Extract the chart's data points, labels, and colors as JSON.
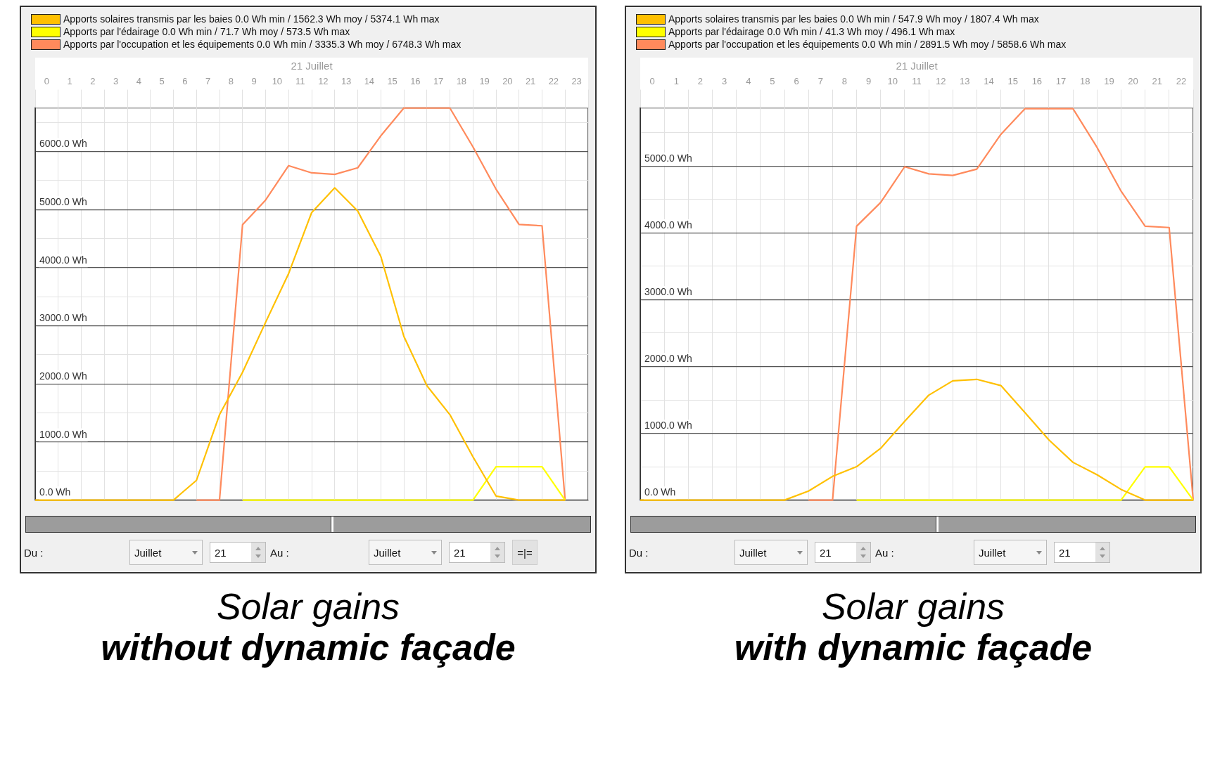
{
  "chart_data": [
    {
      "type": "line",
      "title": "Solar gains",
      "subtitle": "without dynamic façade",
      "xlabel": "21 Juillet",
      "legend": "top left",
      "grid": true,
      "x": [
        0,
        1,
        2,
        3,
        4,
        5,
        6,
        7,
        8,
        9,
        10,
        11,
        12,
        13,
        14,
        15,
        16,
        17,
        18,
        19,
        20,
        21,
        22,
        23
      ],
      "xlim": [
        0,
        24
      ],
      "xticks": [
        {
          "value": 0,
          "label": null
        },
        {
          "value": 0.5,
          "label": "0"
        },
        {
          "value": 1,
          "label": null
        },
        {
          "value": 1.5,
          "label": "1"
        },
        {
          "value": 2,
          "label": null
        },
        {
          "value": 2.5,
          "label": "2"
        },
        {
          "value": 3,
          "label": null
        },
        {
          "value": 3.5,
          "label": "3"
        },
        {
          "value": 4,
          "label": null
        },
        {
          "value": 4.5,
          "label": "4"
        },
        {
          "value": 5,
          "label": null
        },
        {
          "value": 5.5,
          "label": "5"
        },
        {
          "value": 6,
          "label": null
        },
        {
          "value": 6.5,
          "label": "6"
        },
        {
          "value": 7,
          "label": null
        },
        {
          "value": 7.5,
          "label": "7"
        },
        {
          "value": 8,
          "label": null
        },
        {
          "value": 8.5,
          "label": "8"
        },
        {
          "value": 9,
          "label": null
        },
        {
          "value": 9.5,
          "label": "9"
        },
        {
          "value": 10,
          "label": null
        },
        {
          "value": 10.5,
          "label": "10"
        },
        {
          "value": 11,
          "label": null
        },
        {
          "value": 11.5,
          "label": "11"
        },
        {
          "value": 12,
          "label": null
        },
        {
          "value": 12.5,
          "label": "12"
        },
        {
          "value": 13,
          "label": null
        },
        {
          "value": 13.5,
          "label": "13"
        },
        {
          "value": 14,
          "label": null
        },
        {
          "value": 14.5,
          "label": "14"
        },
        {
          "value": 15,
          "label": null
        },
        {
          "value": 15.5,
          "label": "15"
        },
        {
          "value": 16,
          "label": null
        },
        {
          "value": 16.5,
          "label": "16"
        },
        {
          "value": 17,
          "label": null
        },
        {
          "value": 17.5,
          "label": "17"
        },
        {
          "value": 18,
          "label": null
        },
        {
          "value": 18.5,
          "label": "18"
        },
        {
          "value": 19,
          "label": null
        },
        {
          "value": 19.5,
          "label": "19"
        },
        {
          "value": 20,
          "label": null
        },
        {
          "value": 20.5,
          "label": "20"
        },
        {
          "value": 21,
          "label": null
        },
        {
          "value": 21.5,
          "label": "21"
        },
        {
          "value": 22,
          "label": null
        },
        {
          "value": 22.5,
          "label": "22"
        },
        {
          "value": 23,
          "label": null
        },
        {
          "value": 23.5,
          "label": "23"
        },
        {
          "value": 24,
          "label": null
        }
      ],
      "ylim": [
        0,
        6750
      ],
      "yticks": [
        {
          "value": 0,
          "label": "0.0 Wh"
        },
        {
          "value": 500,
          "label": null
        },
        {
          "value": 1000,
          "label": "1000.0 Wh"
        },
        {
          "value": 1500,
          "label": null
        },
        {
          "value": 2000,
          "label": "2000.0 Wh"
        },
        {
          "value": 2500,
          "label": null
        },
        {
          "value": 3000,
          "label": "3000.0 Wh"
        },
        {
          "value": 3500,
          "label": null
        },
        {
          "value": 4000,
          "label": "4000.0 Wh"
        },
        {
          "value": 4500,
          "label": null
        },
        {
          "value": 5000,
          "label": "5000.0 Wh"
        },
        {
          "value": 5500,
          "label": null
        },
        {
          "value": 6000,
          "label": "6000.0 Wh"
        },
        {
          "value": 6500,
          "label": null
        }
      ],
      "series": [
        {
          "name": "Apports solaires transmis par les baies 0.0 Wh min / 1562.3 Wh moy / 5374.1 Wh max",
          "color": "#ffc000",
          "values": [
            0,
            0,
            0,
            0,
            0,
            0,
            0,
            340,
            1470,
            2200,
            3060,
            3900,
            4950,
            5374.1,
            4975,
            4195,
            2820,
            1970,
            1470,
            745,
            70,
            0,
            0,
            0
          ]
        },
        {
          "name": "Apports par l'édairage 0.0 Wh min / 71.7 Wh moy / 573.5 Wh max",
          "color": "#ffff00",
          "values": [
            null,
            null,
            null,
            null,
            null,
            null,
            null,
            null,
            null,
            0,
            0,
            0,
            0,
            0,
            0,
            0,
            0,
            0,
            0,
            0,
            573.5,
            573.5,
            573.5,
            0
          ]
        },
        {
          "name": "Apports par l'occupation et les équipements 0.0 Wh min / 3335.3 Wh moy / 6748.3 Wh max",
          "color": "#ff8a5c",
          "values": [
            null,
            null,
            null,
            null,
            null,
            null,
            null,
            0,
            0,
            4740,
            5165,
            5757,
            5633,
            5606,
            5720,
            6270,
            6748.3,
            6748.3,
            6748.3,
            6080,
            5353,
            4744,
            4722,
            0
          ]
        }
      ],
      "annotations": [
        "Du :",
        "Juillet",
        "21",
        "Au :",
        "Juillet",
        "21",
        "=|="
      ]
    },
    {
      "type": "line",
      "title": "Solar gains",
      "subtitle": "with dynamic façade",
      "xlabel": "21 Juillet",
      "legend": "top left",
      "grid": true,
      "x": [
        0,
        1,
        2,
        3,
        4,
        5,
        6,
        7,
        8,
        9,
        10,
        11,
        12,
        13,
        14,
        15,
        16,
        17,
        18,
        19,
        20,
        21,
        22,
        23
      ],
      "xlim": [
        0,
        23
      ],
      "xticks": [
        {
          "value": 0,
          "label": null
        },
        {
          "value": 0.5,
          "label": "0"
        },
        {
          "value": 1,
          "label": null
        },
        {
          "value": 1.5,
          "label": "1"
        },
        {
          "value": 2,
          "label": null
        },
        {
          "value": 2.5,
          "label": "2"
        },
        {
          "value": 3,
          "label": null
        },
        {
          "value": 3.5,
          "label": "3"
        },
        {
          "value": 4,
          "label": null
        },
        {
          "value": 4.5,
          "label": "4"
        },
        {
          "value": 5,
          "label": null
        },
        {
          "value": 5.5,
          "label": "5"
        },
        {
          "value": 6,
          "label": null
        },
        {
          "value": 6.5,
          "label": "6"
        },
        {
          "value": 7,
          "label": null
        },
        {
          "value": 7.5,
          "label": "7"
        },
        {
          "value": 8,
          "label": null
        },
        {
          "value": 8.5,
          "label": "8"
        },
        {
          "value": 9,
          "label": null
        },
        {
          "value": 9.5,
          "label": "9"
        },
        {
          "value": 10,
          "label": null
        },
        {
          "value": 10.5,
          "label": "10"
        },
        {
          "value": 11,
          "label": null
        },
        {
          "value": 11.5,
          "label": "11"
        },
        {
          "value": 12,
          "label": null
        },
        {
          "value": 12.5,
          "label": "12"
        },
        {
          "value": 13,
          "label": null
        },
        {
          "value": 13.5,
          "label": "13"
        },
        {
          "value": 14,
          "label": null
        },
        {
          "value": 14.5,
          "label": "14"
        },
        {
          "value": 15,
          "label": null
        },
        {
          "value": 15.5,
          "label": "15"
        },
        {
          "value": 16,
          "label": null
        },
        {
          "value": 16.5,
          "label": "16"
        },
        {
          "value": 17,
          "label": null
        },
        {
          "value": 17.5,
          "label": "17"
        },
        {
          "value": 18,
          "label": null
        },
        {
          "value": 18.5,
          "label": "18"
        },
        {
          "value": 19,
          "label": null
        },
        {
          "value": 19.5,
          "label": "19"
        },
        {
          "value": 20,
          "label": null
        },
        {
          "value": 20.5,
          "label": "20"
        },
        {
          "value": 21,
          "label": null
        },
        {
          "value": 21.5,
          "label": "21"
        },
        {
          "value": 22,
          "label": null
        },
        {
          "value": 22.5,
          "label": "22"
        },
        {
          "value": 23,
          "label": null
        }
      ],
      "ylim": [
        0,
        5870
      ],
      "yticks": [
        {
          "value": 0,
          "label": "0.0 Wh"
        },
        {
          "value": 500,
          "label": null
        },
        {
          "value": 1000,
          "label": "1000.0 Wh"
        },
        {
          "value": 1500,
          "label": null
        },
        {
          "value": 2000,
          "label": "2000.0 Wh"
        },
        {
          "value": 2500,
          "label": null
        },
        {
          "value": 3000,
          "label": "3000.0 Wh"
        },
        {
          "value": 3500,
          "label": null
        },
        {
          "value": 4000,
          "label": "4000.0 Wh"
        },
        {
          "value": 4500,
          "label": null
        },
        {
          "value": 5000,
          "label": "5000.0 Wh"
        },
        {
          "value": 5500,
          "label": null
        }
      ],
      "series": [
        {
          "name": "Apports solaires transmis par les baies 0.0 Wh min / 547.9 Wh moy / 1807.4 Wh max",
          "color": "#ffc000",
          "values": [
            0,
            0,
            0,
            0,
            0,
            0,
            0,
            135,
            355,
            500,
            775,
            1180,
            1570,
            1785,
            1807.4,
            1715,
            1310,
            900,
            565,
            380,
            160,
            0,
            0,
            0
          ]
        },
        {
          "name": "Apports par l'édairage 0.0 Wh min / 41.3 Wh moy / 496.1 Wh max",
          "color": "#ffff00",
          "values": [
            null,
            null,
            null,
            null,
            null,
            null,
            null,
            null,
            null,
            0,
            0,
            0,
            0,
            0,
            0,
            0,
            0,
            0,
            0,
            0,
            0,
            496.1,
            496.1,
            0
          ]
        },
        {
          "name": "Apports par l'occupation et les équipements 0.0 Wh min / 2891.5 Wh moy / 5858.6 Wh max",
          "color": "#ff8a5c",
          "values": [
            null,
            null,
            null,
            null,
            null,
            null,
            null,
            0,
            0,
            4100,
            4455,
            4990,
            4883,
            4860,
            4955,
            5475,
            5858.6,
            5858.6,
            5858.6,
            5280,
            4625,
            4100,
            4080,
            0
          ]
        }
      ],
      "annotations": [
        "Du :",
        "Juillet",
        "21",
        "Au :",
        "Juillet",
        "21"
      ]
    }
  ]
}
